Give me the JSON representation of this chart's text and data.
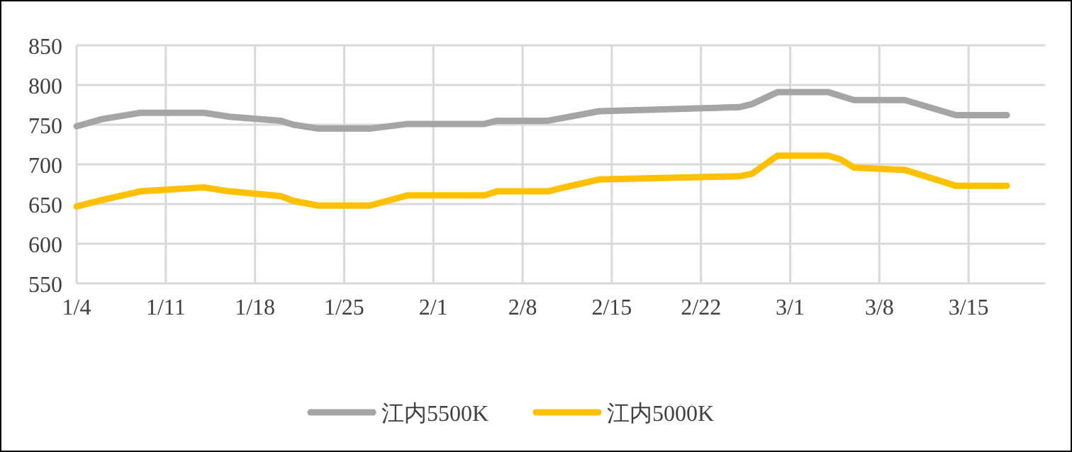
{
  "chart_data": {
    "type": "line",
    "xlim": [
      "--01-04",
      "--03-21"
    ],
    "xticks": [
      {
        "value": "--01-04",
        "label": "1/4"
      },
      {
        "value": "--01-11",
        "label": "1/11"
      },
      {
        "value": "--01-18",
        "label": "1/18"
      },
      {
        "value": "--01-25",
        "label": "1/25"
      },
      {
        "value": "--02-01",
        "label": "2/1"
      },
      {
        "value": "--02-08",
        "label": "2/8"
      },
      {
        "value": "--02-15",
        "label": "2/15"
      },
      {
        "value": "--02-22",
        "label": "2/22"
      },
      {
        "value": "--03-01",
        "label": "3/1"
      },
      {
        "value": "--03-08",
        "label": "3/8"
      },
      {
        "value": "--03-15",
        "label": "3/15"
      }
    ],
    "ylim": [
      550,
      850
    ],
    "yticks": [
      550,
      600,
      650,
      700,
      750,
      800,
      850
    ],
    "grid": true,
    "legend": "bottom",
    "marker": "none",
    "line_style": "solid",
    "series": [
      {
        "name": "江内5500K",
        "color": "#a5a5a5",
        "x": [
          "--01-04",
          "--01-06",
          "--01-09",
          "--01-14",
          "--01-16",
          "--01-20",
          "--01-21",
          "--01-23",
          "--01-27",
          "--01-30",
          "--02-05",
          "--02-06",
          "--02-10",
          "--02-14",
          "--02-25",
          "--02-26",
          "--02-28",
          "--03-04",
          "--03-06",
          "--03-10",
          "--03-14",
          "--03-18"
        ],
        "values": [
          748,
          757,
          765,
          765,
          760,
          755,
          750,
          745,
          745,
          751,
          751,
          755,
          755,
          767,
          772,
          776,
          791,
          791,
          781,
          781,
          762,
          762
        ]
      },
      {
        "name": "江内5000K",
        "color": "#ffc000",
        "x": [
          "--01-04",
          "--01-06",
          "--01-09",
          "--01-14",
          "--01-16",
          "--01-20",
          "--01-21",
          "--01-23",
          "--01-27",
          "--01-30",
          "--02-05",
          "--02-06",
          "--02-10",
          "--02-11",
          "--02-14",
          "--02-25",
          "--02-26",
          "--02-28",
          "--03-04",
          "--03-05",
          "--03-06",
          "--03-10",
          "--03-14",
          "--03-18"
        ],
        "values": [
          647,
          655,
          666,
          671,
          666,
          660,
          654,
          648,
          648,
          661,
          661,
          666,
          666,
          670,
          681,
          685,
          688,
          711,
          711,
          706,
          696,
          693,
          673,
          673
        ]
      }
    ]
  }
}
